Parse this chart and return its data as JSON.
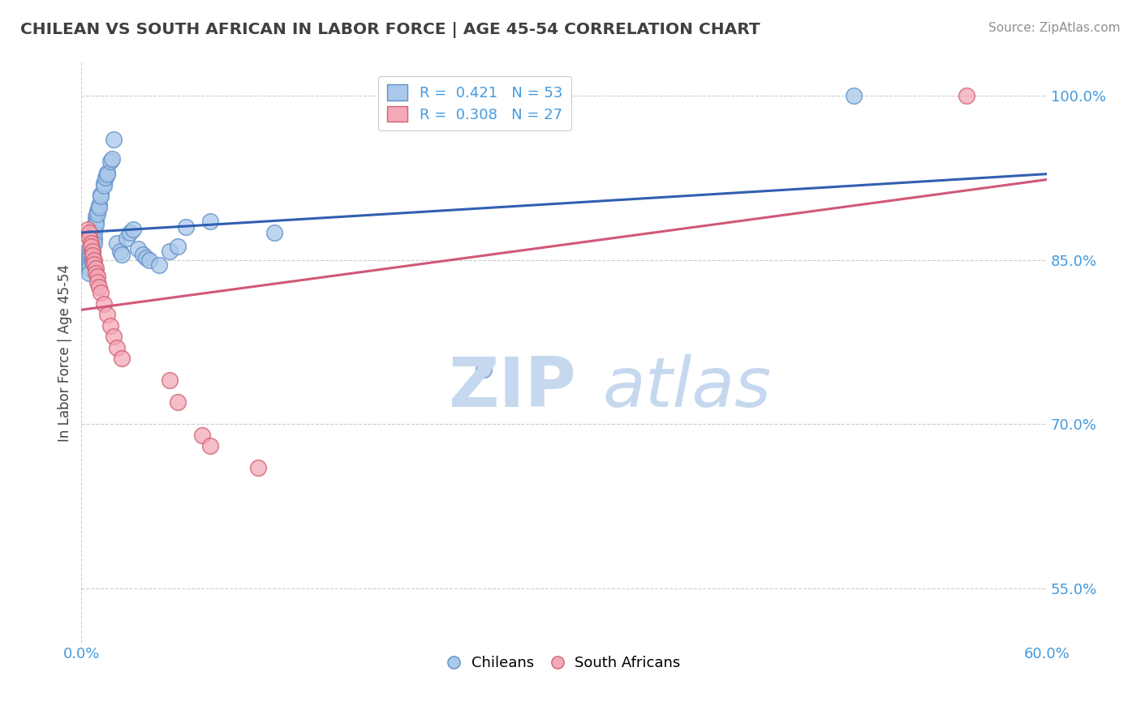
{
  "title": "CHILEAN VS SOUTH AFRICAN IN LABOR FORCE | AGE 45-54 CORRELATION CHART",
  "source_text": "Source: ZipAtlas.com",
  "ylabel": "In Labor Force | Age 45-54",
  "xlim": [
    0.0,
    0.6
  ],
  "ylim": [
    0.5,
    1.03
  ],
  "ytick_positions": [
    0.55,
    0.7,
    0.85,
    1.0
  ],
  "ytick_labels": [
    "55.0%",
    "70.0%",
    "85.0%",
    "100.0%"
  ],
  "r_chilean": 0.421,
  "n_chilean": 53,
  "r_southafrican": 0.308,
  "n_southafrican": 27,
  "blue_color": "#aac8ea",
  "pink_color": "#f4a8b8",
  "blue_edge_color": "#6090c8",
  "pink_edge_color": "#d06070",
  "blue_line_color": "#3060b0",
  "pink_line_color": "#d05878",
  "watermark_zip_color": "#c5d8ee",
  "watermark_atlas_color": "#c5d8ee",
  "background_color": "#ffffff",
  "grid_color": "#cccccc",
  "title_color": "#404040",
  "source_color": "#909090",
  "tick_color": "#4499dd",
  "chilean_x": [
    0.005,
    0.005,
    0.005,
    0.005,
    0.005,
    0.005,
    0.005,
    0.007,
    0.007,
    0.007,
    0.007,
    0.007,
    0.007,
    0.007,
    0.008,
    0.008,
    0.008,
    0.008,
    0.009,
    0.009,
    0.009,
    0.01,
    0.01,
    0.011,
    0.011,
    0.012,
    0.012,
    0.014,
    0.014,
    0.015,
    0.016,
    0.016,
    0.018,
    0.019,
    0.02,
    0.022,
    0.024,
    0.025,
    0.028,
    0.03,
    0.032,
    0.035,
    0.038,
    0.04,
    0.042,
    0.048,
    0.055,
    0.06,
    0.065,
    0.08,
    0.12,
    0.25,
    0.48
  ],
  "chilean_y": [
    0.86,
    0.855,
    0.852,
    0.848,
    0.845,
    0.842,
    0.838,
    0.87,
    0.865,
    0.862,
    0.858,
    0.855,
    0.85,
    0.848,
    0.88,
    0.875,
    0.87,
    0.865,
    0.89,
    0.885,
    0.882,
    0.895,
    0.892,
    0.9,
    0.898,
    0.91,
    0.908,
    0.92,
    0.918,
    0.925,
    0.93,
    0.928,
    0.94,
    0.942,
    0.96,
    0.865,
    0.858,
    0.855,
    0.87,
    0.875,
    0.878,
    0.86,
    0.855,
    0.852,
    0.85,
    0.845,
    0.858,
    0.862,
    0.88,
    0.885,
    0.875,
    0.75,
    1.0
  ],
  "southafrican_x": [
    0.004,
    0.005,
    0.005,
    0.006,
    0.006,
    0.007,
    0.007,
    0.008,
    0.008,
    0.009,
    0.009,
    0.01,
    0.01,
    0.011,
    0.012,
    0.014,
    0.016,
    0.018,
    0.02,
    0.022,
    0.025,
    0.055,
    0.06,
    0.075,
    0.08,
    0.11,
    0.55
  ],
  "southafrican_y": [
    0.878,
    0.875,
    0.87,
    0.865,
    0.862,
    0.858,
    0.854,
    0.85,
    0.846,
    0.842,
    0.838,
    0.835,
    0.83,
    0.825,
    0.82,
    0.81,
    0.8,
    0.79,
    0.78,
    0.77,
    0.76,
    0.74,
    0.72,
    0.69,
    0.68,
    0.66,
    1.0
  ]
}
